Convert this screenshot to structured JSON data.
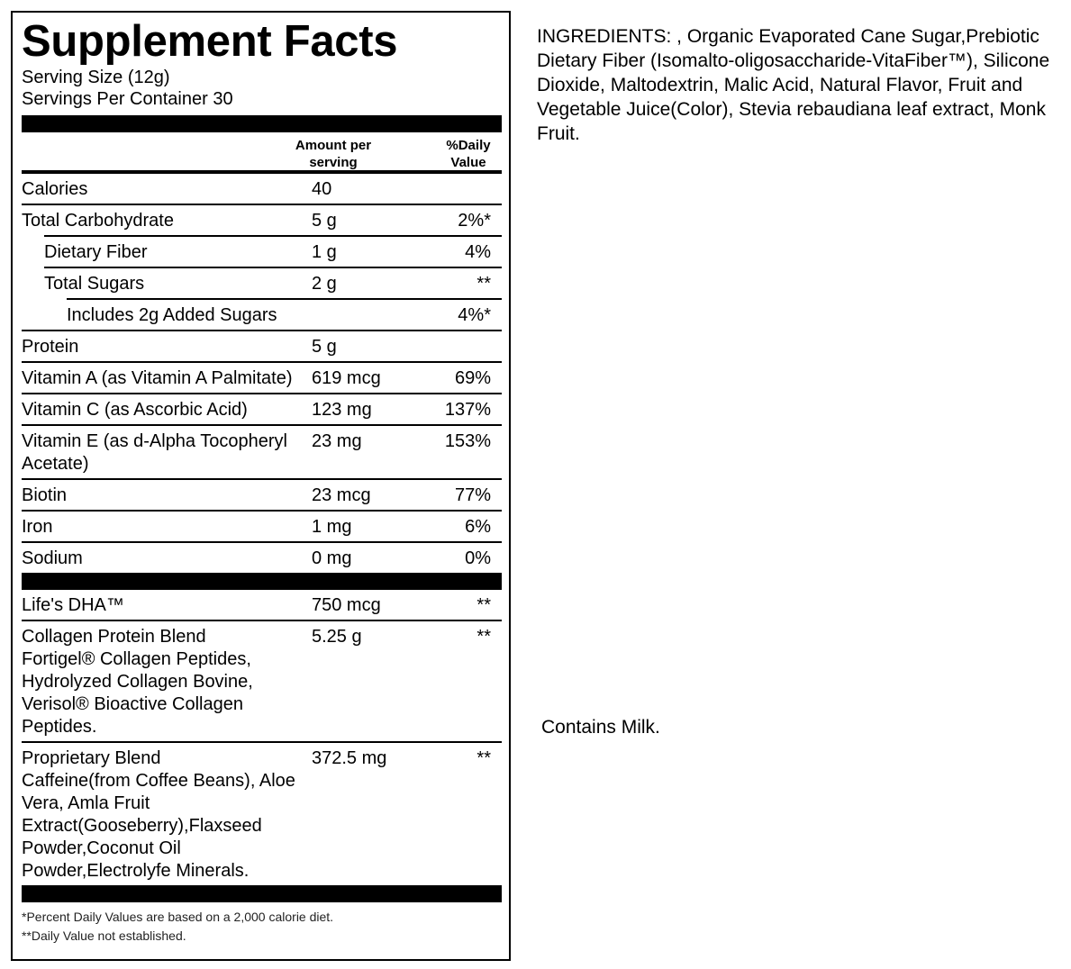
{
  "label": {
    "title": "Supplement Facts",
    "serving_size": "Serving Size (12g)",
    "servings_per_container": "Servings Per Container 30",
    "columns": {
      "amount": "Amount per serving",
      "daily_value": "%Daily Value"
    },
    "sections": [
      {
        "rows": [
          {
            "name": "Calories",
            "amount": "40"
          },
          {
            "name": "Total Carbohydrate",
            "amount": "5 g",
            "daily_value": "2%*",
            "subrows": [
              {
                "name": "Dietary Fiber",
                "amount": "1 g",
                "daily_value": "4%"
              },
              {
                "name": "Total Sugars",
                "amount": "2 g",
                "daily_value": "**",
                "subrows": [
                  {
                    "name": "Includes 2g Added Sugars",
                    "daily_value": "4%*"
                  }
                ]
              }
            ]
          },
          {
            "name": "Protein",
            "amount": "5 g"
          },
          {
            "name": "Vitamin A (as Vitamin A Palmitate)",
            "amount": "619 mcg",
            "daily_value": "69%"
          },
          {
            "name": "Vitamin C (as Ascorbic Acid)",
            "amount": "123 mg",
            "daily_value": "137%"
          },
          {
            "name": "Vitamin E (as d-Alpha Tocopheryl Acetate)",
            "amount": "23 mg",
            "daily_value": "153%"
          },
          {
            "name": "Biotin",
            "amount": "23 mcg",
            "daily_value": "77%"
          },
          {
            "name": "Iron",
            "amount": "1 mg",
            "daily_value": "6%"
          },
          {
            "name": "Sodium",
            "amount": "0 mg",
            "daily_value": "0%"
          }
        ]
      },
      {
        "rows": [
          {
            "name": "Life's DHA™",
            "amount": "750 mcg",
            "daily_value": "**"
          },
          {
            "name": "Collagen Protein Blend",
            "ingredients": "Fortigel® Collagen Peptides, Hydrolyzed Collagen Bovine, Verisol® Bioactive Collagen Peptides.",
            "amount": "5.25 g",
            "daily_value": "**"
          },
          {
            "name": "Proprietary Blend",
            "ingredients": "Caffeine(from Coffee Beans), Aloe Vera, Amla Fruit Extract(Gooseberry),Flaxseed Powder,Coconut Oil Powder,Electrolyfe Minerals.",
            "amount": "372.5 mg",
            "daily_value": "**"
          }
        ]
      }
    ],
    "footnotes": [
      "*Percent Daily Values are based on a 2,000 calorie diet.",
      "**Daily Value not established."
    ]
  },
  "ingredients": "INGREDIENTS: , Organic Evaporated Cane Sugar,Prebiotic Dietary Fiber (Isomalto-oligosaccharide-VitaFiber™), Silicone Dioxide,  Maltodextrin, Malic Acid, Natural Flavor, Fruit and Vegetable Juice(Color), Stevia rebaudiana leaf extract, Monk Fruit.",
  "allergens": "Contains Milk."
}
